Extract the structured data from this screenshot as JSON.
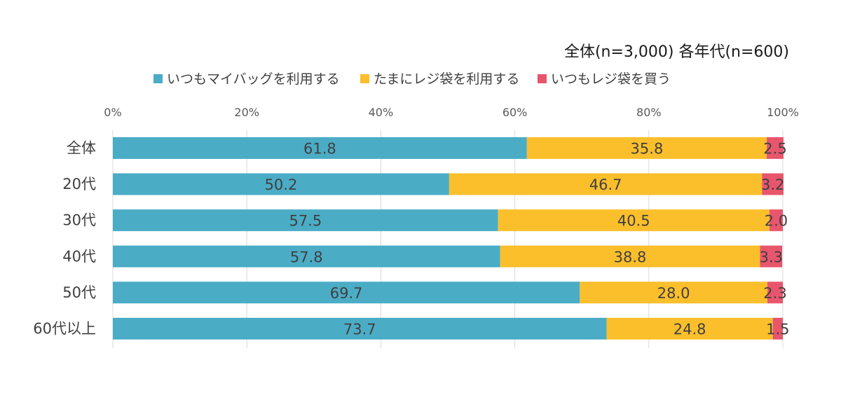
{
  "note": "全体(n=3,000)  各年代(n=600)",
  "legend": [
    {
      "label": "いつもマイバッグを利用する",
      "color": "#4BACC6"
    },
    {
      "label": "たまにレジ袋を利用する",
      "color": "#FBBF2C"
    },
    {
      "label": "いつもレジ袋を買う",
      "color": "#E8566D"
    }
  ],
  "chart_data": {
    "type": "bar",
    "orientation": "horizontal",
    "stacked": true,
    "categories": [
      "全体",
      "20代",
      "30代",
      "40代",
      "50代",
      "60代以上"
    ],
    "series": [
      {
        "name": "いつもマイバッグを利用する",
        "color": "#4BACC6",
        "values": [
          61.8,
          50.2,
          57.5,
          57.8,
          69.7,
          73.7
        ]
      },
      {
        "name": "たまにレジ袋を利用する",
        "color": "#FBBF2C",
        "values": [
          35.8,
          46.7,
          40.5,
          38.8,
          28.0,
          24.8
        ]
      },
      {
        "name": "いつもレジ袋を買う",
        "color": "#E8566D",
        "values": [
          2.5,
          3.2,
          2.0,
          3.3,
          2.3,
          1.5
        ]
      }
    ],
    "data_labels": [
      [
        "61.8",
        "50.2",
        "57.5",
        "57.8",
        "69.7",
        "73.7"
      ],
      [
        "35.8",
        "46.7",
        "40.5",
        "38.8",
        "28.0",
        "24.8"
      ],
      [
        "2.5",
        "3.2",
        "2.0",
        "3.3",
        "2.3",
        "1.5"
      ]
    ],
    "xaxis_ticks": [
      "0%",
      "20%",
      "40%",
      "60%",
      "80%",
      "100%"
    ],
    "xlim": [
      0,
      100
    ],
    "axis_position": "top",
    "grid": true,
    "legend_position": "top"
  }
}
